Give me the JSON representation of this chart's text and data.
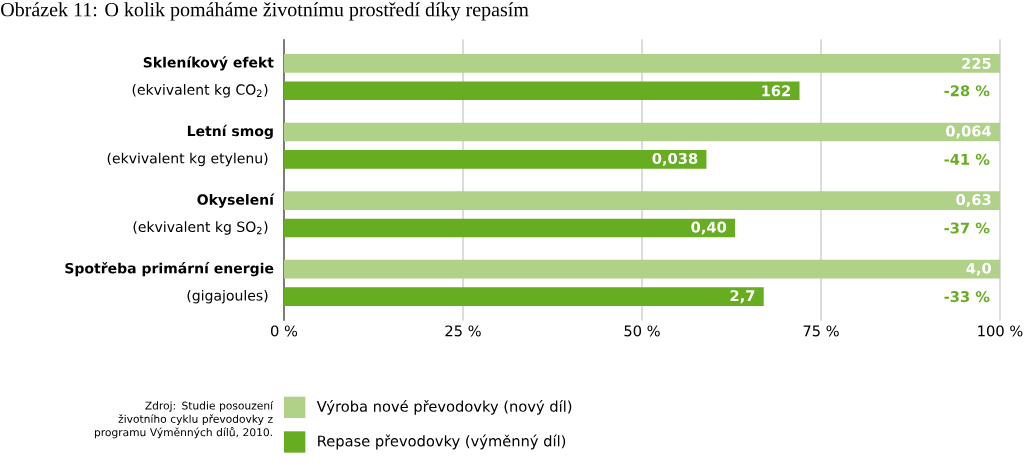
{
  "chart_data": {
    "type": "bar",
    "orientation": "horizontal",
    "title": "Obrázek 11: O kolik pomáháme životnímu prostředí díky repasím",
    "categories": [
      "Skleníkový efekt",
      "Letní smog",
      "Okyselení",
      "Spotřeba primární energie"
    ],
    "series": [
      {
        "name": "Výroba nové převodovky (nový díl)",
        "color": "#afd188",
        "values": [
          100,
          100,
          100,
          100
        ]
      },
      {
        "name": "Repase převodovky (výměnný díl)",
        "color": "#66ad22",
        "values": [
          72,
          59,
          63,
          67
        ]
      }
    ],
    "xlim": [
      0,
      100
    ],
    "xticks": [
      {
        "value": 0,
        "label": "0 %"
      },
      {
        "value": 25,
        "label": "25 %"
      },
      {
        "value": 50,
        "label": "50 %"
      },
      {
        "value": 75,
        "label": "75 %"
      },
      {
        "value": 100,
        "label": "100 %"
      }
    ],
    "grid": "x",
    "legend": "bottom",
    "annotations": [
      "(ekvivalent kg CO$_{2}$)",
      "(ekvivalent kg etylenu)",
      "(ekvivalent kg SO$_{2}$)",
      "(gigajoules)",
      "225",
      "0,064",
      "0,63",
      "4,0",
      "162",
      "0,038",
      "0,40",
      "2,7",
      "-28 %",
      "-41 %",
      "-37 %",
      "-33 %",
      "Zdroj: Studie posouzení životního cyklu převodovky z programu Výměnných dílů, 2010."
    ]
  }
}
